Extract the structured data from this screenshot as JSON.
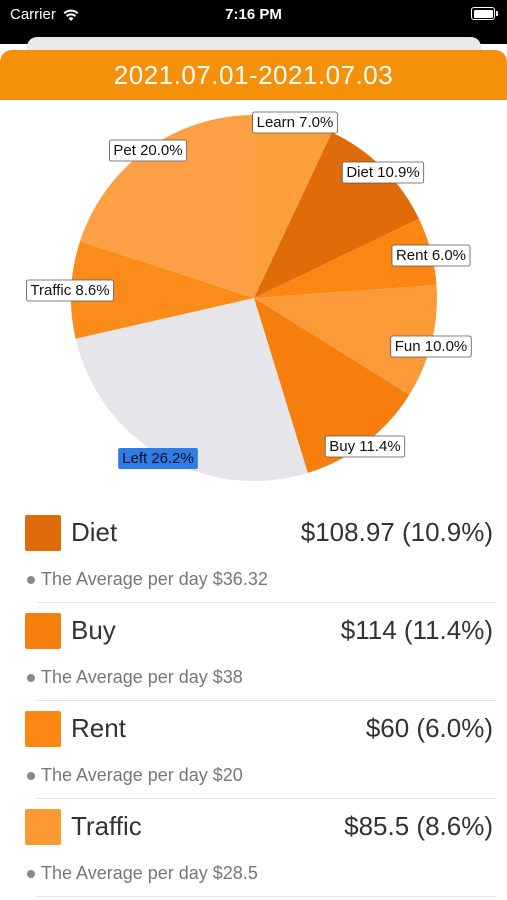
{
  "status": {
    "carrier": "Carrier",
    "time": "7:16 PM"
  },
  "header": {
    "date_range": "2021.07.01-2021.07.03"
  },
  "chart_data": {
    "type": "pie",
    "slices": [
      {
        "label": "Learn 7.0%",
        "percent": 7.0,
        "color": "#fb9f3c",
        "highlight": false
      },
      {
        "label": "Diet 10.9%",
        "percent": 10.9,
        "color": "#e06b0a",
        "highlight": false
      },
      {
        "label": "Rent 6.0%",
        "percent": 6.0,
        "color": "#fb8712",
        "highlight": false
      },
      {
        "label": "Fun 10.0%",
        "percent": 10.0,
        "color": "#fc9a3a",
        "highlight": false
      },
      {
        "label": "Buy 11.4%",
        "percent": 11.4,
        "color": "#f57e0c",
        "highlight": false
      },
      {
        "label": "Left 26.2%",
        "percent": 26.2,
        "color": "#e6e6ea",
        "highlight": true
      },
      {
        "label": "Traffic 8.6%",
        "percent": 8.6,
        "color": "#fb8c1a",
        "highlight": false
      },
      {
        "label": "Pet 20.0%",
        "percent": 20.0,
        "color": "#fda045",
        "highlight": false
      }
    ]
  },
  "categories": [
    {
      "name": "Diet",
      "amount": "$108.97 (10.9%)",
      "average": "The Average per day $36.32",
      "color": "#e06b0a"
    },
    {
      "name": "Buy",
      "amount": "$114 (11.4%)",
      "average": "The Average per day $38",
      "color": "#f57e0c"
    },
    {
      "name": "Rent",
      "amount": "$60 (6.0%)",
      "average": "The Average per day $20",
      "color": "#fb8712"
    },
    {
      "name": "Traffic",
      "amount": "$85.5 (8.6%)",
      "average": "The Average per day $28.5",
      "color": "#fb9a33"
    }
  ]
}
